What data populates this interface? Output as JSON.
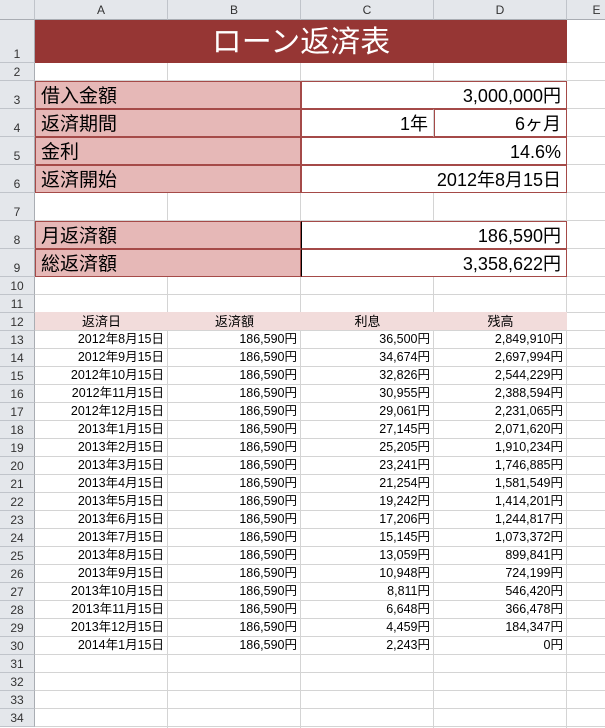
{
  "sheet": {
    "columns": [
      "A",
      "B",
      "C",
      "D",
      "E"
    ],
    "title": "ローン返済表",
    "colors": {
      "title_bg": "#963634",
      "label_bg": "#E6B8B7",
      "header_bg": "#F2DCDB",
      "border": "#A54A48"
    }
  },
  "summary": {
    "loan_amount": {
      "label": "借入金額",
      "value": "3,000,000円"
    },
    "term": {
      "label": "返済期間",
      "years": "1年",
      "months": "6ヶ月"
    },
    "rate": {
      "label": "金利",
      "value": "14.6%"
    },
    "start": {
      "label": "返済開始",
      "value": "2012年8月15日"
    },
    "monthly": {
      "label": "月返済額",
      "value": "186,590円"
    },
    "total": {
      "label": "総返済額",
      "value": "3,358,622円"
    }
  },
  "schedule": {
    "headers": [
      "返済日",
      "返済額",
      "利息",
      "残高"
    ],
    "rows": [
      [
        "2012年8月15日",
        "186,590円",
        "36,500円",
        "2,849,910円"
      ],
      [
        "2012年9月15日",
        "186,590円",
        "34,674円",
        "2,697,994円"
      ],
      [
        "2012年10月15日",
        "186,590円",
        "32,826円",
        "2,544,229円"
      ],
      [
        "2012年11月15日",
        "186,590円",
        "30,955円",
        "2,388,594円"
      ],
      [
        "2012年12月15日",
        "186,590円",
        "29,061円",
        "2,231,065円"
      ],
      [
        "2013年1月15日",
        "186,590円",
        "27,145円",
        "2,071,620円"
      ],
      [
        "2013年2月15日",
        "186,590円",
        "25,205円",
        "1,910,234円"
      ],
      [
        "2013年3月15日",
        "186,590円",
        "23,241円",
        "1,746,885円"
      ],
      [
        "2013年4月15日",
        "186,590円",
        "21,254円",
        "1,581,549円"
      ],
      [
        "2013年5月15日",
        "186,590円",
        "19,242円",
        "1,414,201円"
      ],
      [
        "2013年6月15日",
        "186,590円",
        "17,206円",
        "1,244,817円"
      ],
      [
        "2013年7月15日",
        "186,590円",
        "15,145円",
        "1,073,372円"
      ],
      [
        "2013年8月15日",
        "186,590円",
        "13,059円",
        "899,841円"
      ],
      [
        "2013年9月15日",
        "186,590円",
        "10,948円",
        "724,199円"
      ],
      [
        "2013年10月15日",
        "186,590円",
        "8,811円",
        "546,420円"
      ],
      [
        "2013年11月15日",
        "186,590円",
        "6,648円",
        "366,478円"
      ],
      [
        "2013年12月15日",
        "186,590円",
        "4,459円",
        "184,347円"
      ],
      [
        "2014年1月15日",
        "186,590円",
        "2,243円",
        "0円"
      ]
    ]
  }
}
